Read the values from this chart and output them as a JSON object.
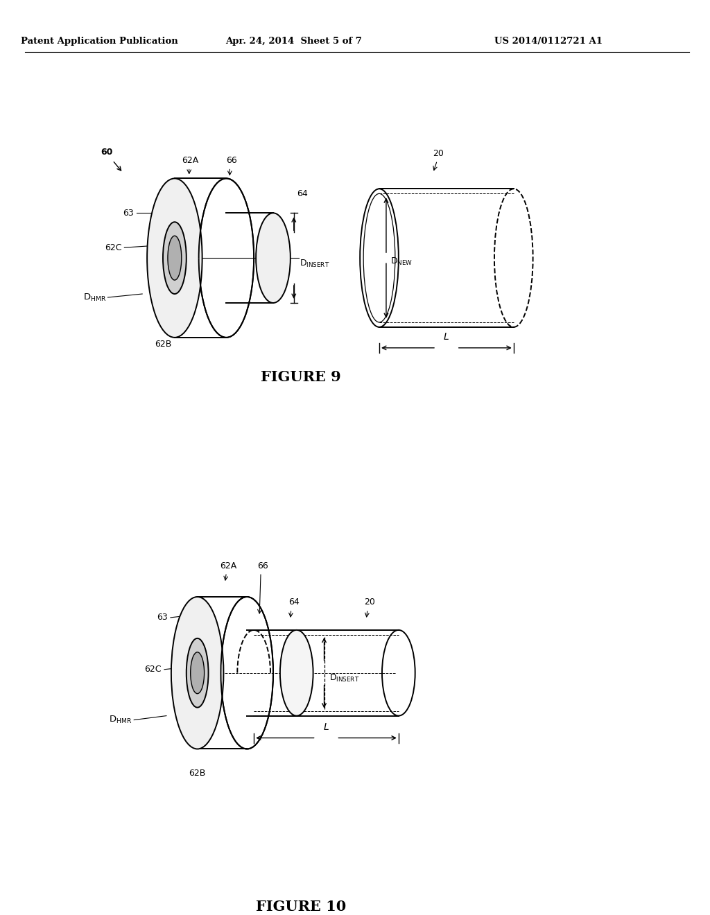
{
  "bg_color": "#ffffff",
  "text_color": "#000000",
  "line_color": "#000000",
  "header_left": "Patent Application Publication",
  "header_center": "Apr. 24, 2014  Sheet 5 of 7",
  "header_right": "US 2014/0112721 A1",
  "figure9_title": "FIGURE 9",
  "figure10_title": "FIGURE 10"
}
